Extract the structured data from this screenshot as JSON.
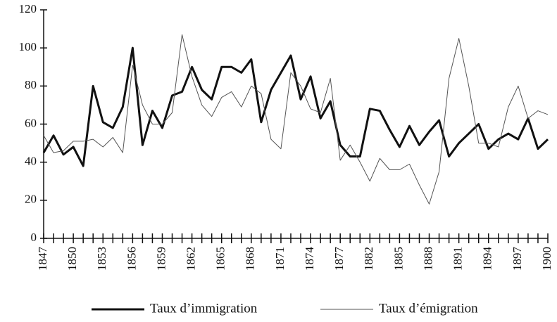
{
  "chart_data": {
    "type": "line",
    "categories": [
      "1847",
      null,
      null,
      "1850",
      null,
      null,
      "1853",
      null,
      null,
      "1856",
      null,
      null,
      "1859",
      null,
      null,
      "1862",
      null,
      null,
      "1865",
      null,
      null,
      "1868",
      null,
      null,
      "1871",
      null,
      null,
      "1874",
      null,
      null,
      "1877",
      null,
      null,
      "1882",
      null,
      null,
      "1885",
      null,
      null,
      "1888",
      null,
      null,
      "1891",
      null,
      null,
      "1894",
      null,
      null,
      "1897",
      null,
      null,
      "1900"
    ],
    "series": [
      {
        "name": "Taux d’immigration",
        "color": "#111111",
        "width": 3,
        "values": [
          45,
          54,
          44,
          48,
          38,
          80,
          61,
          58,
          69,
          100,
          49,
          67,
          58,
          75,
          77,
          90,
          78,
          73,
          90,
          90,
          87,
          94,
          61,
          78,
          87,
          96,
          73,
          85,
          63,
          72,
          49,
          43,
          43,
          68,
          67,
          57,
          48,
          59,
          49,
          56,
          62,
          43,
          50,
          55,
          60,
          47,
          52,
          55,
          52,
          63,
          47,
          52
        ]
      },
      {
        "name": "Taux d’émigration",
        "color": "#555555",
        "width": 1,
        "values": [
          54,
          45,
          46,
          51,
          51,
          52,
          48,
          53,
          45,
          91,
          70,
          60,
          60,
          66,
          107,
          85,
          70,
          64,
          74,
          77,
          69,
          80,
          76,
          52,
          47,
          87,
          80,
          68,
          66,
          84,
          41,
          49,
          40,
          30,
          42,
          36,
          36,
          39,
          28,
          18,
          35,
          84,
          105,
          80,
          50,
          50,
          48,
          69,
          80,
          63,
          67,
          65
        ]
      }
    ],
    "ylim": [
      0,
      120
    ],
    "yticks": [
      0,
      20,
      40,
      60,
      80,
      100,
      120
    ],
    "legend": "bottom"
  }
}
